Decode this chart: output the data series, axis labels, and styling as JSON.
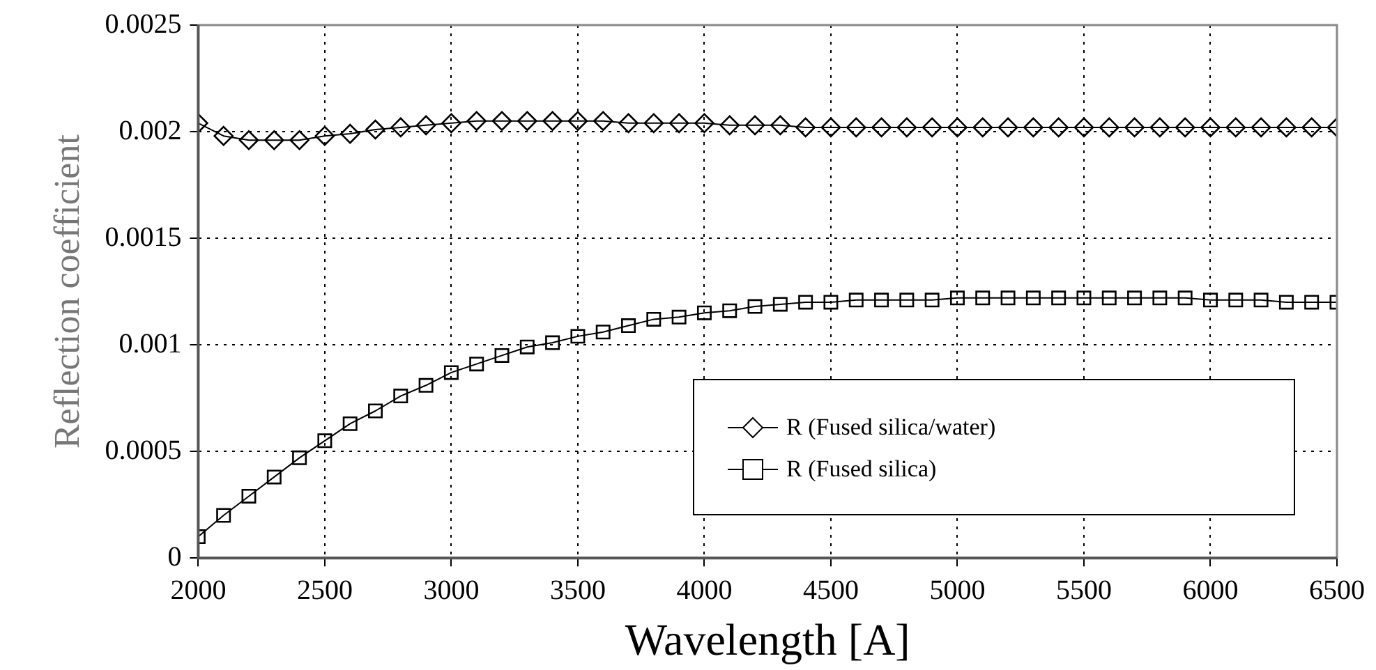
{
  "chart_data": {
    "type": "line",
    "xlabel": "Wavelength [A]",
    "ylabel": "Reflection coefficient",
    "x": [
      2000,
      2100,
      2200,
      2300,
      2400,
      2500,
      2600,
      2700,
      2800,
      2900,
      3000,
      3100,
      3200,
      3300,
      3400,
      3500,
      3600,
      3700,
      3800,
      3900,
      4000,
      4100,
      4200,
      4300,
      4400,
      4500,
      4600,
      4700,
      4800,
      4900,
      5000,
      5100,
      5200,
      5300,
      5400,
      5500,
      5600,
      5700,
      5800,
      5900,
      6000,
      6100,
      6200,
      6300,
      6400,
      6500
    ],
    "series": [
      {
        "name": "R (Fused silica/water)",
        "color": "#000000",
        "marker": "diamond",
        "values": [
          0.00204,
          0.00198,
          0.00196,
          0.00196,
          0.00196,
          0.00198,
          0.00199,
          0.00201,
          0.00202,
          0.00203,
          0.00204,
          0.00205,
          0.00205,
          0.00205,
          0.00205,
          0.00205,
          0.00205,
          0.00204,
          0.00204,
          0.00204,
          0.00204,
          0.00203,
          0.00203,
          0.00203,
          0.00202,
          0.00202,
          0.00202,
          0.00202,
          0.00202,
          0.00202,
          0.00202,
          0.00202,
          0.00202,
          0.00202,
          0.00202,
          0.00202,
          0.00202,
          0.00202,
          0.00202,
          0.00202,
          0.00202,
          0.00202,
          0.00202,
          0.00202,
          0.00202,
          0.00202
        ]
      },
      {
        "name": "R (Fused silica)",
        "color": "#000000",
        "marker": "square",
        "values": [
          0.0001,
          0.0002,
          0.00029,
          0.00038,
          0.00047,
          0.00055,
          0.00063,
          0.00069,
          0.00076,
          0.00081,
          0.00087,
          0.00091,
          0.00095,
          0.00099,
          0.00101,
          0.00104,
          0.00106,
          0.00109,
          0.00112,
          0.00113,
          0.00115,
          0.00116,
          0.00118,
          0.00119,
          0.0012,
          0.0012,
          0.00121,
          0.00121,
          0.00121,
          0.00121,
          0.00122,
          0.00122,
          0.00122,
          0.00122,
          0.00122,
          0.00122,
          0.00122,
          0.00122,
          0.00122,
          0.00122,
          0.00121,
          0.00121,
          0.00121,
          0.0012,
          0.0012,
          0.0012
        ]
      }
    ],
    "xlim": [
      2000,
      6500
    ],
    "xticks": [
      2000,
      2500,
      3000,
      3500,
      4000,
      4500,
      5000,
      5500,
      6000,
      6500
    ],
    "ylim": [
      0,
      0.0025
    ],
    "yticks": [
      0,
      0.0005,
      0.001,
      0.0015,
      0.002,
      0.0025
    ],
    "grid": true,
    "legend": "bottom right",
    "line_style": "solid"
  }
}
